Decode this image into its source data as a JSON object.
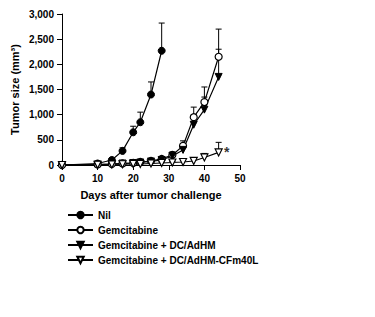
{
  "chart_data": {
    "type": "line",
    "x_label": "Days after tumor challenge",
    "y_label": "Tumor size (mm³)",
    "xlim": [
      0,
      50
    ],
    "xticks": [
      0,
      10,
      20,
      30,
      40,
      50
    ],
    "ylim": [
      0,
      3000
    ],
    "yticks": [
      0,
      500,
      1000,
      1500,
      2000,
      2500,
      3000
    ],
    "grid": false,
    "legend": "bottom",
    "series": [
      {
        "name": "Nil",
        "color": "#000000",
        "marker": "circle",
        "line_style": "solid",
        "x": [
          0,
          10,
          14,
          17,
          20,
          22,
          25,
          28
        ],
        "values": [
          0,
          30,
          100,
          280,
          650,
          850,
          1400,
          2270
        ],
        "errors": [
          0,
          10,
          30,
          60,
          120,
          200,
          250,
          550
        ]
      },
      {
        "name": "Gemcitabine",
        "color": "#000000",
        "marker": "circle_open",
        "line_style": "solid",
        "x": [
          0,
          10,
          14,
          17,
          20,
          22,
          25,
          28,
          31,
          34,
          37,
          40,
          44
        ],
        "values": [
          0,
          10,
          20,
          30,
          40,
          60,
          80,
          120,
          200,
          380,
          950,
          1250,
          2150
        ],
        "errors": [
          0,
          5,
          10,
          10,
          15,
          20,
          30,
          40,
          60,
          100,
          200,
          300,
          550
        ]
      },
      {
        "name": "Gemcitabine + DC/AdHM",
        "color": "#000000",
        "marker": "triangle_down",
        "line_style": "solid",
        "x": [
          0,
          10,
          14,
          17,
          20,
          22,
          25,
          28,
          31,
          34,
          37,
          40,
          44
        ],
        "values": [
          0,
          10,
          20,
          30,
          40,
          50,
          70,
          100,
          180,
          300,
          800,
          1100,
          1750
        ],
        "errors": [
          0,
          5,
          10,
          10,
          15,
          20,
          30,
          40,
          50,
          80,
          200,
          250,
          550
        ]
      },
      {
        "name": "Gemcitabine + DC/AdHM-CFm40L",
        "color": "#000000",
        "marker": "triangle_down_open",
        "line_style": "solid",
        "x": [
          0,
          10,
          14,
          17,
          20,
          22,
          25,
          28,
          31,
          34,
          37,
          40,
          44
        ],
        "values": [
          0,
          5,
          10,
          15,
          20,
          20,
          30,
          40,
          50,
          60,
          80,
          150,
          250
        ],
        "errors": [
          0,
          3,
          5,
          5,
          5,
          10,
          10,
          15,
          20,
          30,
          40,
          80,
          200
        ]
      }
    ],
    "annotations": [
      {
        "text": "*",
        "x": 45.5,
        "y": 250
      }
    ]
  }
}
